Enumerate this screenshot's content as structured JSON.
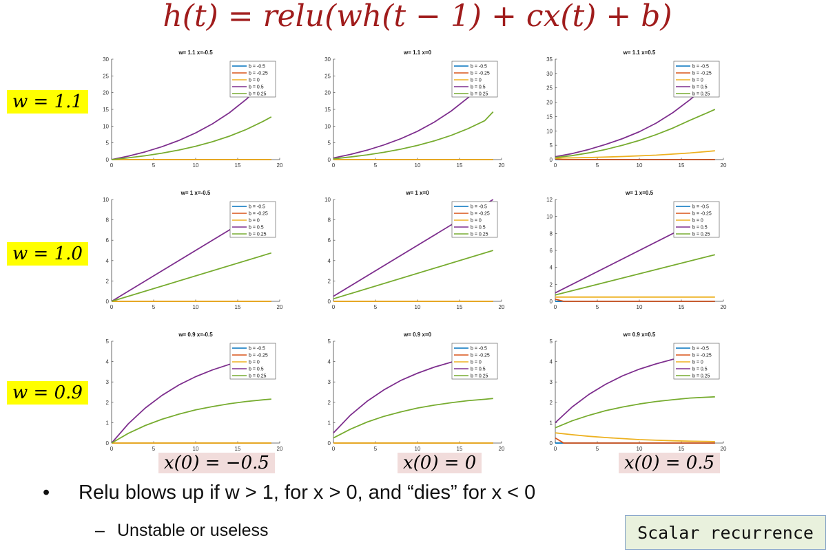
{
  "title": "h(t) = relu(wh(t − 1) + cx(t) + b)",
  "row_labels": [
    "w = 1.1",
    "w = 1.0",
    "w = 0.9"
  ],
  "col_labels": [
    "x(0) = −0.5",
    "x(0) = 0",
    "x(0) = 0.5"
  ],
  "bullet": "Relu blows up if w > 1, for x > 0, and “dies” for x < 0",
  "sub_bullet": "Unstable or useless",
  "box_label": "Scalar recurrence",
  "series_colors": {
    "b = -0.5": "#0072bd",
    "b = -0.25": "#d95319",
    "b = 0": "#edb120",
    "b = 0.5": "#7e2f8e",
    "b = 0.25": "#77ac30"
  },
  "legend": [
    "b = -0.5",
    "b = -0.25",
    "b = 0",
    "b = 0.5",
    "b = 0.25"
  ],
  "chart_data": [
    {
      "type": "line",
      "title": "w= 1.1 x=-0.5",
      "xlim": [
        0,
        20
      ],
      "ylim": [
        0,
        30
      ],
      "xticks": [
        0,
        5,
        10,
        15,
        20
      ],
      "yticks": [
        0,
        5,
        10,
        15,
        20,
        25,
        30
      ],
      "legend_position": "top-right",
      "w": 1.1,
      "x0": -0.5,
      "series": [
        {
          "name": "b = -0.5",
          "x": [
            0,
            19
          ],
          "y": [
            0,
            0
          ]
        },
        {
          "name": "b = -0.25",
          "x": [
            0,
            19
          ],
          "y": [
            0,
            0
          ]
        },
        {
          "name": "b = 0",
          "x": [
            0,
            19
          ],
          "y": [
            0,
            0
          ]
        },
        {
          "name": "b = 0.5",
          "x": [
            0,
            2,
            4,
            6,
            8,
            10,
            12,
            14,
            16,
            17
          ],
          "y": [
            0,
            1.05,
            2.32,
            3.87,
            5.72,
            7.97,
            10.69,
            13.98,
            17.95,
            20.3
          ]
        },
        {
          "name": "b = 0.25",
          "x": [
            0,
            2,
            4,
            6,
            8,
            10,
            12,
            14,
            16,
            18,
            19
          ],
          "y": [
            0,
            0.53,
            1.16,
            1.93,
            2.86,
            3.98,
            5.34,
            6.99,
            8.98,
            11.38,
            12.77
          ]
        }
      ]
    },
    {
      "type": "line",
      "title": "w= 1.1 x=0",
      "xlim": [
        0,
        20
      ],
      "ylim": [
        0,
        30
      ],
      "xticks": [
        0,
        5,
        10,
        15,
        20
      ],
      "yticks": [
        0,
        5,
        10,
        15,
        20,
        25,
        30
      ],
      "legend_position": "top-right",
      "w": 1.1,
      "x0": 0,
      "series": [
        {
          "name": "b = -0.5",
          "x": [
            0,
            19
          ],
          "y": [
            0,
            0
          ]
        },
        {
          "name": "b = -0.25",
          "x": [
            0,
            19
          ],
          "y": [
            0,
            0
          ]
        },
        {
          "name": "b = 0",
          "x": [
            0,
            19
          ],
          "y": [
            0,
            0
          ]
        },
        {
          "name": "b = 0.5",
          "x": [
            0,
            2,
            4,
            6,
            8,
            10,
            12,
            14,
            16,
            17
          ],
          "y": [
            0.5,
            1.55,
            2.82,
            4.37,
            6.22,
            8.47,
            11.19,
            14.48,
            18.45,
            20.8
          ]
        },
        {
          "name": "b = 0.25",
          "x": [
            0,
            2,
            4,
            6,
            8,
            10,
            12,
            14,
            16,
            18,
            19
          ],
          "y": [
            0.25,
            0.78,
            1.41,
            2.18,
            3.11,
            4.23,
            5.59,
            7.24,
            9.23,
            11.63,
            14.28
          ]
        }
      ]
    },
    {
      "type": "line",
      "title": "w= 1.1 x=0.5",
      "xlim": [
        0,
        20
      ],
      "ylim": [
        0,
        35
      ],
      "xticks": [
        0,
        5,
        10,
        15,
        20
      ],
      "yticks": [
        0,
        5,
        10,
        15,
        20,
        25,
        30,
        35
      ],
      "legend_position": "top-right",
      "w": 1.1,
      "x0": 0.5,
      "series": [
        {
          "name": "b = -0.5",
          "x": [
            0,
            1,
            19
          ],
          "y": [
            0,
            0,
            0
          ]
        },
        {
          "name": "b = -0.25",
          "x": [
            0,
            1,
            19
          ],
          "y": [
            0.25,
            0,
            0
          ]
        },
        {
          "name": "b = 0",
          "x": [
            0,
            4,
            8,
            12,
            16,
            19
          ],
          "y": [
            0.5,
            0.73,
            1.07,
            1.57,
            2.3,
            3.06
          ]
        },
        {
          "name": "b = 0.5",
          "x": [
            0,
            2,
            4,
            6,
            8,
            10,
            12,
            14,
            16,
            17
          ],
          "y": [
            1.0,
            2.1,
            3.55,
            5.3,
            7.3,
            9.7,
            12.7,
            16.4,
            20.8,
            23.3
          ]
        },
        {
          "name": "b = 0.25",
          "x": [
            0,
            2,
            4,
            6,
            8,
            10,
            12,
            14,
            16,
            18,
            19
          ],
          "y": [
            0.75,
            1.4,
            2.35,
            3.55,
            5.0,
            6.7,
            8.7,
            11.0,
            13.7,
            16.2,
            17.5
          ]
        }
      ]
    },
    {
      "type": "line",
      "title": "w= 1 x=-0.5",
      "xlim": [
        0,
        20
      ],
      "ylim": [
        0,
        10
      ],
      "xticks": [
        0,
        5,
        10,
        15,
        20
      ],
      "yticks": [
        0,
        2,
        4,
        6,
        8,
        10
      ],
      "legend_position": "top-right",
      "w": 1.0,
      "x0": -0.5,
      "series": [
        {
          "name": "b = -0.5",
          "x": [
            0,
            19
          ],
          "y": [
            0,
            0
          ]
        },
        {
          "name": "b = -0.25",
          "x": [
            0,
            19
          ],
          "y": [
            0,
            0
          ]
        },
        {
          "name": "b = 0",
          "x": [
            0,
            19
          ],
          "y": [
            0,
            0
          ]
        },
        {
          "name": "b = 0.5",
          "x": [
            0,
            15
          ],
          "y": [
            0,
            7.5
          ]
        },
        {
          "name": "b = 0.25",
          "x": [
            0,
            19
          ],
          "y": [
            0,
            4.75
          ]
        }
      ]
    },
    {
      "type": "line",
      "title": "w= 1 x=0",
      "xlim": [
        0,
        20
      ],
      "ylim": [
        0,
        10
      ],
      "xticks": [
        0,
        5,
        10,
        15,
        20
      ],
      "yticks": [
        0,
        2,
        4,
        6,
        8,
        10
      ],
      "legend_position": "top-right",
      "w": 1.0,
      "x0": 0,
      "series": [
        {
          "name": "b = -0.5",
          "x": [
            0,
            19
          ],
          "y": [
            0,
            0
          ]
        },
        {
          "name": "b = -0.25",
          "x": [
            0,
            19
          ],
          "y": [
            0,
            0
          ]
        },
        {
          "name": "b = 0",
          "x": [
            0,
            19
          ],
          "y": [
            0,
            0
          ]
        },
        {
          "name": "b = 0.5",
          "x": [
            0,
            19
          ],
          "y": [
            0.5,
            10
          ]
        },
        {
          "name": "b = 0.25",
          "x": [
            0,
            19
          ],
          "y": [
            0.25,
            5.0
          ]
        }
      ]
    },
    {
      "type": "line",
      "title": "w= 1 x=0.5",
      "xlim": [
        0,
        20
      ],
      "ylim": [
        0,
        12
      ],
      "xticks": [
        0,
        5,
        10,
        15,
        20
      ],
      "yticks": [
        0,
        2,
        4,
        6,
        8,
        10,
        12
      ],
      "legend_position": "top-right",
      "w": 1.0,
      "x0": 0.5,
      "series": [
        {
          "name": "b = -0.5",
          "x": [
            0,
            1,
            19
          ],
          "y": [
            0,
            0,
            0
          ]
        },
        {
          "name": "b = -0.25",
          "x": [
            0,
            1,
            19
          ],
          "y": [
            0.25,
            0,
            0
          ]
        },
        {
          "name": "b = 0",
          "x": [
            0,
            19
          ],
          "y": [
            0.5,
            0.5
          ]
        },
        {
          "name": "b = 0.5",
          "x": [
            0,
            15
          ],
          "y": [
            1.0,
            8.5
          ]
        },
        {
          "name": "b = 0.25",
          "x": [
            0,
            19
          ],
          "y": [
            0.75,
            5.5
          ]
        }
      ]
    },
    {
      "type": "line",
      "title": "w= 0.9 x=-0.5",
      "xlim": [
        0,
        20
      ],
      "ylim": [
        0,
        5
      ],
      "xticks": [
        0,
        5,
        10,
        15,
        20
      ],
      "yticks": [
        0,
        1,
        2,
        3,
        4,
        5
      ],
      "legend_position": "top-right",
      "w": 0.9,
      "x0": -0.5,
      "series": [
        {
          "name": "b = -0.5",
          "x": [
            0,
            19
          ],
          "y": [
            0,
            0
          ]
        },
        {
          "name": "b = -0.25",
          "x": [
            0,
            19
          ],
          "y": [
            0,
            0
          ]
        },
        {
          "name": "b = 0",
          "x": [
            0,
            19
          ],
          "y": [
            0,
            0
          ]
        },
        {
          "name": "b = 0.5",
          "x": [
            0,
            2,
            4,
            6,
            8,
            10,
            12,
            14,
            14.5
          ],
          "y": [
            0,
            0.95,
            1.72,
            2.34,
            2.85,
            3.26,
            3.59,
            3.86,
            3.92
          ]
        },
        {
          "name": "b = 0.25",
          "x": [
            0,
            2,
            4,
            6,
            8,
            10,
            12,
            14,
            16,
            18,
            19
          ],
          "y": [
            0,
            0.48,
            0.86,
            1.17,
            1.42,
            1.63,
            1.79,
            1.93,
            2.04,
            2.12,
            2.16
          ]
        }
      ]
    },
    {
      "type": "line",
      "title": "w= 0.9 x=0",
      "xlim": [
        0,
        20
      ],
      "ylim": [
        0,
        5
      ],
      "xticks": [
        0,
        5,
        10,
        15,
        20
      ],
      "yticks": [
        0,
        1,
        2,
        3,
        4,
        5
      ],
      "legend_position": "top-right",
      "w": 0.9,
      "x0": 0,
      "series": [
        {
          "name": "b = -0.5",
          "x": [
            0,
            19
          ],
          "y": [
            0,
            0
          ]
        },
        {
          "name": "b = -0.25",
          "x": [
            0,
            19
          ],
          "y": [
            0,
            0
          ]
        },
        {
          "name": "b = 0",
          "x": [
            0,
            19
          ],
          "y": [
            0,
            0
          ]
        },
        {
          "name": "b = 0.5",
          "x": [
            0,
            2,
            4,
            6,
            8,
            10,
            12,
            14,
            14.5
          ],
          "y": [
            0.5,
            1.36,
            2.05,
            2.61,
            3.07,
            3.43,
            3.73,
            3.97,
            4.02
          ]
        },
        {
          "name": "b = 0.25",
          "x": [
            0,
            2,
            4,
            6,
            8,
            10,
            12,
            14,
            16,
            18,
            19
          ],
          "y": [
            0.25,
            0.68,
            1.03,
            1.31,
            1.53,
            1.72,
            1.86,
            1.98,
            2.08,
            2.15,
            2.19
          ]
        }
      ]
    },
    {
      "type": "line",
      "title": "w= 0.9 x=0.5",
      "xlim": [
        0,
        20
      ],
      "ylim": [
        0,
        5
      ],
      "xticks": [
        0,
        5,
        10,
        15,
        20
      ],
      "yticks": [
        0,
        1,
        2,
        3,
        4,
        5
      ],
      "legend_position": "top-right",
      "w": 0.9,
      "x0": 0.5,
      "series": [
        {
          "name": "b = -0.5",
          "x": [
            0,
            1,
            19
          ],
          "y": [
            0,
            0,
            0
          ]
        },
        {
          "name": "b = -0.25",
          "x": [
            0,
            1,
            19
          ],
          "y": [
            0.25,
            0,
            0
          ]
        },
        {
          "name": "b = 0",
          "x": [
            0,
            2,
            4,
            6,
            8,
            10,
            12,
            14,
            16,
            18,
            19
          ],
          "y": [
            0.5,
            0.41,
            0.33,
            0.27,
            0.22,
            0.17,
            0.14,
            0.11,
            0.09,
            0.08,
            0.07
          ]
        },
        {
          "name": "b = 0.5",
          "x": [
            0,
            2,
            4,
            6,
            8,
            10,
            12,
            14,
            14.5
          ],
          "y": [
            1.0,
            1.77,
            2.39,
            2.89,
            3.3,
            3.63,
            3.89,
            4.11,
            4.15
          ]
        },
        {
          "name": "b = 0.25",
          "x": [
            0,
            2,
            4,
            6,
            8,
            10,
            12,
            14,
            16,
            18,
            19
          ],
          "y": [
            0.75,
            1.09,
            1.36,
            1.59,
            1.77,
            1.92,
            2.04,
            2.13,
            2.21,
            2.25,
            2.27
          ]
        }
      ]
    }
  ]
}
